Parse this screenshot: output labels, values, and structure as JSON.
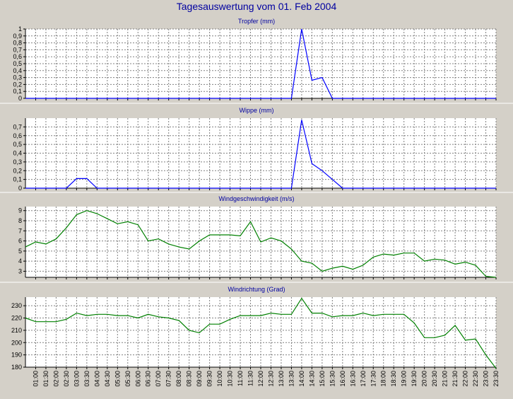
{
  "page": {
    "title": "Tagesauswertung vom 01. Feb 2004"
  },
  "colors": {
    "background": "#d4d0c8",
    "plot_background": "#ffffff",
    "title_color": "#0000a0",
    "grid": "#808080",
    "blue_series": "#0000ff",
    "green_series": "#008000"
  },
  "x_axis": {
    "tick_labels": [
      "01:00",
      "01:30",
      "02:00",
      "02:30",
      "03:00",
      "03:30",
      "04:00",
      "04:30",
      "05:00",
      "05:30",
      "06:00",
      "06:30",
      "07:00",
      "07:30",
      "08:00",
      "08:30",
      "09:00",
      "09:30",
      "10:00",
      "10:30",
      "11:00",
      "11:30",
      "12:00",
      "12:30",
      "13:00",
      "13:30",
      "14:00",
      "14:30",
      "15:00",
      "15:30",
      "16:00",
      "16:30",
      "17:00",
      "17:30",
      "18:00",
      "18:30",
      "19:00",
      "19:30",
      "20:00",
      "20:30",
      "21:00",
      "21:30",
      "22:00",
      "22:30",
      "23:00",
      "23:30"
    ]
  },
  "chart_data": [
    {
      "type": "line",
      "title": "Tropfer (mm)",
      "x": [
        "00:30",
        "01:00",
        "01:30",
        "02:00",
        "02:30",
        "03:00",
        "03:30",
        "04:00",
        "04:30",
        "05:00",
        "05:30",
        "06:00",
        "06:30",
        "07:00",
        "07:30",
        "08:00",
        "08:30",
        "09:00",
        "09:30",
        "10:00",
        "10:30",
        "11:00",
        "11:30",
        "12:00",
        "12:30",
        "13:00",
        "13:30",
        "14:00",
        "14:30",
        "15:00",
        "15:30",
        "16:00",
        "16:30",
        "17:00",
        "17:30",
        "18:00",
        "18:30",
        "19:00",
        "19:30",
        "20:00",
        "20:30",
        "21:00",
        "21:30",
        "22:00",
        "22:30",
        "23:00",
        "23:30"
      ],
      "series": [
        {
          "values": [
            0,
            0,
            0,
            0,
            0,
            0,
            0,
            0,
            0,
            0,
            0,
            0,
            0,
            0,
            0,
            0,
            0,
            0,
            0,
            0,
            0,
            0,
            0,
            0,
            0,
            0,
            0,
            1.0,
            0.26,
            0.3,
            0,
            0,
            0,
            0,
            0,
            0,
            0,
            0,
            0,
            0,
            0,
            0,
            0,
            0,
            0,
            0,
            0
          ],
          "color": "#0000ff"
        }
      ],
      "ylim": [
        0,
        1
      ],
      "yticks": [
        0,
        0.1,
        0.2,
        0.3,
        0.4,
        0.5,
        0.6,
        0.7,
        0.8,
        0.9,
        1
      ],
      "ytick_labels": [
        "0",
        "0,1",
        "0,2",
        "0,3",
        "0,4",
        "0,5",
        "0,6",
        "0,7",
        "0,8",
        "0,9",
        "1"
      ],
      "grid": true
    },
    {
      "type": "line",
      "title": "Wippe (mm)",
      "x": [
        "00:30",
        "01:00",
        "01:30",
        "02:00",
        "02:30",
        "03:00",
        "03:30",
        "04:00",
        "04:30",
        "05:00",
        "05:30",
        "06:00",
        "06:30",
        "07:00",
        "07:30",
        "08:00",
        "08:30",
        "09:00",
        "09:30",
        "10:00",
        "10:30",
        "11:00",
        "11:30",
        "12:00",
        "12:30",
        "13:00",
        "13:30",
        "14:00",
        "14:30",
        "15:00",
        "15:30",
        "16:00",
        "16:30",
        "17:00",
        "17:30",
        "18:00",
        "18:30",
        "19:00",
        "19:30",
        "20:00",
        "20:30",
        "21:00",
        "21:30",
        "22:00",
        "22:30",
        "23:00",
        "23:30"
      ],
      "series": [
        {
          "values": [
            0,
            0,
            0,
            0,
            0,
            0.11,
            0.11,
            0,
            0,
            0,
            0,
            0,
            0,
            0,
            0,
            0,
            0,
            0,
            0,
            0,
            0,
            0,
            0,
            0,
            0,
            0,
            0,
            0.78,
            0.28,
            0.2,
            0.1,
            0,
            0,
            0,
            0,
            0,
            0,
            0,
            0,
            0,
            0,
            0,
            0,
            0,
            0,
            0,
            0
          ],
          "color": "#0000ff"
        }
      ],
      "ylim": [
        0,
        0.8
      ],
      "yticks": [
        0,
        0.1,
        0.2,
        0.3,
        0.4,
        0.5,
        0.6,
        0.7
      ],
      "ytick_labels": [
        "0",
        "0,1",
        "0,2",
        "0,3",
        "0,4",
        "0,5",
        "0,6",
        "0,7"
      ],
      "grid": true
    },
    {
      "type": "line",
      "title": "Windgeschwindigkeit (m/s)",
      "x": [
        "00:30",
        "01:00",
        "01:30",
        "02:00",
        "02:30",
        "03:00",
        "03:30",
        "04:00",
        "04:30",
        "05:00",
        "05:30",
        "06:00",
        "06:30",
        "07:00",
        "07:30",
        "08:00",
        "08:30",
        "09:00",
        "09:30",
        "10:00",
        "10:30",
        "11:00",
        "11:30",
        "12:00",
        "12:30",
        "13:00",
        "13:30",
        "14:00",
        "14:30",
        "15:00",
        "15:30",
        "16:00",
        "16:30",
        "17:00",
        "17:30",
        "18:00",
        "18:30",
        "19:00",
        "19:30",
        "20:00",
        "20:30",
        "21:00",
        "21:30",
        "22:00",
        "22:30",
        "23:00",
        "23:30"
      ],
      "series": [
        {
          "values": [
            5.4,
            5.9,
            5.7,
            6.2,
            7.3,
            8.6,
            9.0,
            8.7,
            8.2,
            7.7,
            7.9,
            7.6,
            6.0,
            6.2,
            5.7,
            5.4,
            5.2,
            6.0,
            6.6,
            6.6,
            6.6,
            6.5,
            7.9,
            5.9,
            6.3,
            6.0,
            5.2,
            4.0,
            3.8,
            3.0,
            3.3,
            3.5,
            3.2,
            3.6,
            4.4,
            4.7,
            4.6,
            4.8,
            4.8,
            4.0,
            4.2,
            4.1,
            3.7,
            3.9,
            3.6,
            2.5,
            2.4
          ],
          "color": "#008000"
        }
      ],
      "ylim": [
        2.4,
        9.4
      ],
      "yticks": [
        3,
        4,
        5,
        6,
        7,
        8,
        9
      ],
      "ytick_labels": [
        "3",
        "4",
        "5",
        "6",
        "7",
        "8",
        "9"
      ],
      "grid": true
    },
    {
      "type": "line",
      "title": "Windrichtung (Grad)",
      "x": [
        "00:30",
        "01:00",
        "01:30",
        "02:00",
        "02:30",
        "03:00",
        "03:30",
        "04:00",
        "04:30",
        "05:00",
        "05:30",
        "06:00",
        "06:30",
        "07:00",
        "07:30",
        "08:00",
        "08:30",
        "09:00",
        "09:30",
        "10:00",
        "10:30",
        "11:00",
        "11:30",
        "12:00",
        "12:30",
        "13:00",
        "13:30",
        "14:00",
        "14:30",
        "15:00",
        "15:30",
        "16:00",
        "16:30",
        "17:00",
        "17:30",
        "18:00",
        "18:30",
        "19:00",
        "19:30",
        "20:00",
        "20:30",
        "21:00",
        "21:30",
        "22:00",
        "22:30",
        "23:00",
        "23:30"
      ],
      "series": [
        {
          "values": [
            220,
            217,
            217,
            217,
            219,
            224,
            222,
            223,
            223,
            222,
            222,
            220,
            223,
            221,
            220,
            218,
            210,
            208,
            215,
            215,
            219,
            222,
            222,
            222,
            224,
            223,
            223,
            236,
            224,
            224,
            221,
            222,
            222,
            224,
            222,
            223,
            223,
            223,
            216,
            204,
            204,
            206,
            214,
            202,
            203,
            190,
            179
          ],
          "color": "#008000"
        }
      ],
      "ylim": [
        180,
        237
      ],
      "yticks": [
        180,
        190,
        200,
        210,
        220,
        230
      ],
      "ytick_labels": [
        "180",
        "190",
        "200",
        "210",
        "220",
        "230"
      ],
      "grid": true
    }
  ]
}
